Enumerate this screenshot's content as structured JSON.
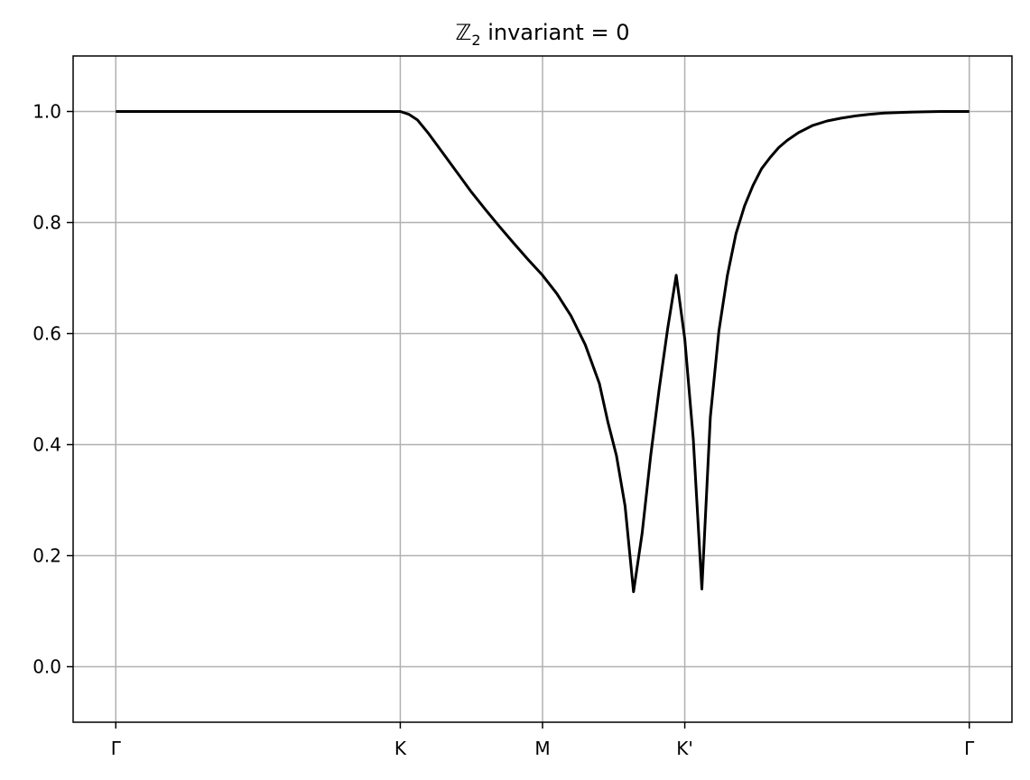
{
  "chart_data": {
    "type": "line",
    "title": {
      "symbol": "ℤ",
      "subscript": "2",
      "rest": " invariant = 0"
    },
    "xlabel": "",
    "ylabel": "",
    "x_ticks": [
      {
        "label": "Γ",
        "x": 0
      },
      {
        "label": "K",
        "x": 1
      },
      {
        "label": "M",
        "x": 1.5
      },
      {
        "label": "K'",
        "x": 2
      },
      {
        "label": "Γ",
        "x": 3
      }
    ],
    "y_ticks": [
      0.0,
      0.2,
      0.4,
      0.6,
      0.8,
      1.0
    ],
    "y_tick_labels": [
      "0.0",
      "0.2",
      "0.4",
      "0.6",
      "0.8",
      "1.0"
    ],
    "xlim": [
      -0.15,
      3.15
    ],
    "ylim": [
      -0.1,
      1.1
    ],
    "grid": true,
    "line_color": "#000000",
    "grid_color": "#b0b0b0",
    "series": [
      {
        "x": [
          0.0,
          0.2,
          0.4,
          0.6,
          0.8,
          1.0,
          1.03,
          1.06,
          1.1,
          1.15,
          1.2,
          1.25,
          1.3,
          1.35,
          1.4,
          1.45,
          1.5,
          1.55,
          1.6,
          1.65,
          1.7,
          1.73,
          1.76,
          1.79,
          1.82,
          1.85,
          1.88,
          1.91,
          1.94,
          1.97,
          2.0,
          2.03,
          2.06,
          2.09,
          2.12,
          2.15,
          2.18,
          2.21,
          2.24,
          2.27,
          2.3,
          2.33,
          2.36,
          2.4,
          2.45,
          2.5,
          2.55,
          2.6,
          2.65,
          2.7,
          2.8,
          2.9,
          3.0
        ],
        "y": [
          1.0,
          1.0,
          1.0,
          1.0,
          1.0,
          1.0,
          0.995,
          0.985,
          0.96,
          0.925,
          0.89,
          0.855,
          0.823,
          0.792,
          0.762,
          0.733,
          0.705,
          0.672,
          0.632,
          0.58,
          0.51,
          0.44,
          0.38,
          0.29,
          0.135,
          0.24,
          0.38,
          0.5,
          0.61,
          0.705,
          0.59,
          0.41,
          0.14,
          0.45,
          0.605,
          0.705,
          0.78,
          0.83,
          0.867,
          0.897,
          0.917,
          0.935,
          0.948,
          0.962,
          0.975,
          0.983,
          0.988,
          0.992,
          0.995,
          0.997,
          0.999,
          1.0,
          1.0
        ]
      }
    ]
  }
}
